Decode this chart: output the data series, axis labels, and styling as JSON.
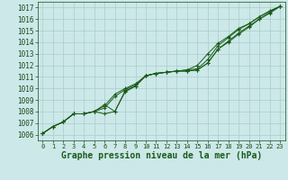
{
  "bg_color": "#cce8e8",
  "grid_color": "#aacccc",
  "line_color": "#1a5c1a",
  "xlabel": "Graphe pression niveau de la mer (hPa)",
  "xlabel_fontsize": 7.0,
  "xtick_fontsize": 5.0,
  "ytick_fontsize": 5.5,
  "xlim": [
    -0.5,
    23.5
  ],
  "ylim": [
    1005.5,
    1017.5
  ],
  "yticks": [
    1006,
    1007,
    1008,
    1009,
    1010,
    1011,
    1012,
    1013,
    1014,
    1015,
    1016,
    1017
  ],
  "xticks": [
    0,
    1,
    2,
    3,
    4,
    5,
    6,
    7,
    8,
    9,
    10,
    11,
    12,
    13,
    14,
    15,
    16,
    17,
    18,
    19,
    20,
    21,
    22,
    23
  ],
  "series": [
    [
      1006.1,
      1006.7,
      1007.1,
      1007.8,
      1007.8,
      1008.0,
      1007.8,
      1008.0,
      1009.7,
      1010.2,
      1011.1,
      1011.3,
      1011.4,
      1011.5,
      1011.5,
      1011.6,
      1012.2,
      1013.4,
      1014.0,
      1014.7,
      1015.3,
      1016.0,
      1016.5,
      1017.1
    ],
    [
      1006.1,
      1006.7,
      1007.1,
      1007.8,
      1007.8,
      1008.0,
      1008.3,
      1009.3,
      1009.9,
      1010.3,
      1011.1,
      1011.3,
      1011.4,
      1011.5,
      1011.5,
      1011.6,
      1012.2,
      1013.4,
      1014.1,
      1014.8,
      1015.4,
      1016.0,
      1016.6,
      1017.1
    ],
    [
      1006.1,
      1006.7,
      1007.1,
      1007.8,
      1007.8,
      1008.0,
      1008.5,
      1009.5,
      1010.0,
      1010.4,
      1011.1,
      1011.3,
      1011.4,
      1011.5,
      1011.6,
      1011.7,
      1012.5,
      1013.7,
      1014.4,
      1015.1,
      1015.6,
      1016.2,
      1016.7,
      1017.1
    ],
    [
      1006.1,
      1006.7,
      1007.1,
      1007.8,
      1007.8,
      1008.0,
      1008.6,
      1008.0,
      1009.8,
      1010.2,
      1011.1,
      1011.3,
      1011.4,
      1011.5,
      1011.6,
      1012.0,
      1013.0,
      1013.9,
      1014.5,
      1015.2,
      1015.6,
      1016.2,
      1016.7,
      1017.1
    ]
  ]
}
